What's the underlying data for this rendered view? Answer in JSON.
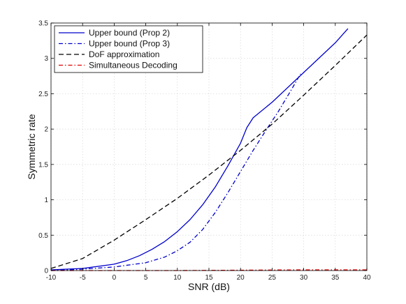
{
  "chart_data": {
    "type": "line",
    "xlabel": "SNR (dB)",
    "ylabel": "Symmetric rate",
    "xlim": [
      -10,
      40
    ],
    "ylim": [
      0,
      3.5
    ],
    "xticks": [
      -10,
      -5,
      0,
      5,
      10,
      15,
      20,
      25,
      30,
      35,
      40
    ],
    "yticks": [
      0,
      0.5,
      1,
      1.5,
      2,
      2.5,
      3,
      3.5
    ],
    "grid": true,
    "legend_position": "top-left",
    "series": [
      {
        "name": "Upper bound (Prop 2)",
        "color": "#0000cc",
        "dash": "solid",
        "x": [
          -10,
          -5,
          0,
          2,
          4,
          6,
          8,
          10,
          12,
          14,
          16,
          18,
          20,
          21,
          22,
          25,
          30,
          35,
          37
        ],
        "y": [
          0.01,
          0.03,
          0.09,
          0.14,
          0.21,
          0.3,
          0.41,
          0.55,
          0.72,
          0.93,
          1.18,
          1.48,
          1.8,
          2.02,
          2.16,
          2.38,
          2.8,
          3.22,
          3.42
        ]
      },
      {
        "name": "Upper bound (Prop 3)",
        "color": "#0000cc",
        "dash": "dashdot",
        "x": [
          -10,
          -5,
          0,
          5,
          8,
          10,
          12,
          14,
          16,
          18,
          20,
          22,
          24,
          26,
          28,
          29.5
        ],
        "y": [
          0.0,
          0.02,
          0.05,
          0.11,
          0.19,
          0.28,
          0.4,
          0.58,
          0.82,
          1.1,
          1.4,
          1.7,
          1.98,
          2.25,
          2.55,
          2.78
        ]
      },
      {
        "name": "DoF approximation",
        "color": "#000000",
        "dash": "dashed",
        "x": [
          -10,
          -5,
          0,
          5,
          10,
          15,
          20,
          25,
          30,
          35,
          40
        ],
        "y": [
          0.03,
          0.17,
          0.43,
          0.72,
          1.02,
          1.35,
          1.7,
          2.07,
          2.48,
          2.9,
          3.33
        ]
      },
      {
        "name": "Simultaneous Decoding",
        "color": "#dd0000",
        "dash": "dashdot",
        "x": [
          -10,
          0,
          10,
          20,
          30,
          40
        ],
        "y": [
          0.0,
          0.0,
          0.0,
          0.005,
          0.01,
          0.01
        ]
      }
    ]
  }
}
